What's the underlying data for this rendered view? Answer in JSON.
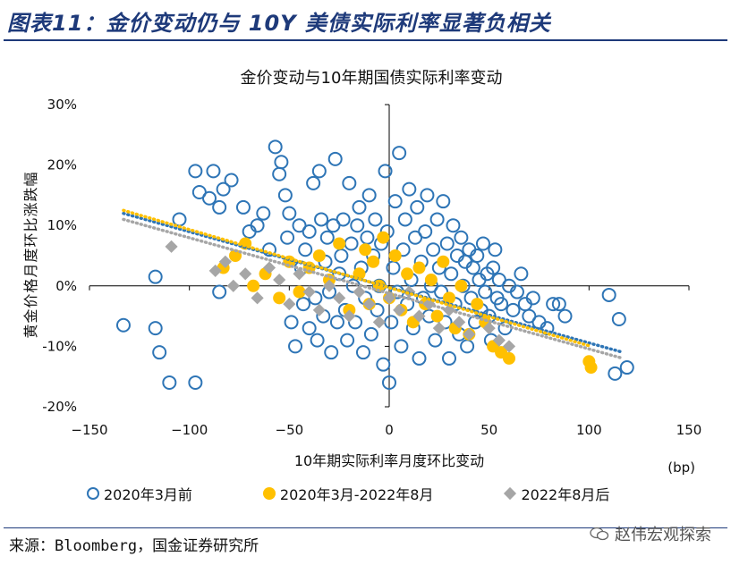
{
  "figure_title": "图表11：金价变动仍与 10Y 美债实际利率显著负相关",
  "source": "来源：Bloomberg，国金证券研究所",
  "watermark": "赵伟宏观探索",
  "colors": {
    "series1": "#2e75b6",
    "series2": "#ffc000",
    "series3": "#a6a6a6",
    "title": "#1e3a7a"
  },
  "chart_data": {
    "type": "scatter",
    "title": "金价变动与10年期国债实际利率变动",
    "xlabel": "10年期实际利率月度环比变动",
    "xunit": "(bp)",
    "ylabel": "黄金价格月度环比涨跌幅",
    "xlim": [
      -150,
      150
    ],
    "ylim": [
      -20,
      30
    ],
    "xticks": [
      -150,
      -100,
      -50,
      0,
      50,
      100,
      150
    ],
    "xtick_labels": [
      "−150",
      "−100",
      "−50",
      "0",
      "50",
      "100",
      "150"
    ],
    "yticks": [
      -20,
      -10,
      0,
      10,
      20,
      30
    ],
    "ytick_labels": [
      "-20%",
      "-10%",
      "0%",
      "10%",
      "20%",
      "30%"
    ],
    "legend_position": "bottom",
    "series": [
      {
        "name": "2020年3月前",
        "marker": "hollow-circle",
        "color": "#2e75b6",
        "points": [
          [
            -133,
            -6.5
          ],
          [
            -117,
            1.5
          ],
          [
            -117,
            -7
          ],
          [
            -115,
            -11
          ],
          [
            -110,
            -16
          ],
          [
            -105,
            11
          ],
          [
            -97,
            -16
          ],
          [
            -97,
            19
          ],
          [
            -95,
            15.5
          ],
          [
            -90,
            14.5
          ],
          [
            -88,
            19
          ],
          [
            -85,
            13
          ],
          [
            -85,
            -1
          ],
          [
            -83,
            16
          ],
          [
            -79,
            17.5
          ],
          [
            -73,
            13
          ],
          [
            -70,
            9
          ],
          [
            -66,
            10
          ],
          [
            -63,
            12
          ],
          [
            -60,
            6
          ],
          [
            -57,
            23
          ],
          [
            -55,
            18.5
          ],
          [
            -54,
            20.5
          ],
          [
            -52,
            15
          ],
          [
            -51,
            8
          ],
          [
            -50,
            12
          ],
          [
            -49,
            -6
          ],
          [
            -47,
            -10
          ],
          [
            -45,
            10
          ],
          [
            -44,
            3
          ],
          [
            -43,
            -3
          ],
          [
            -42,
            6
          ],
          [
            -40,
            9
          ],
          [
            -40,
            -7
          ],
          [
            -38,
            17
          ],
          [
            -37,
            -2
          ],
          [
            -36,
            -9
          ],
          [
            -35,
            19
          ],
          [
            -34,
            11
          ],
          [
            -33,
            -5
          ],
          [
            -32,
            4
          ],
          [
            -31,
            8
          ],
          [
            -30,
            -1
          ],
          [
            -29,
            -11
          ],
          [
            -28,
            10
          ],
          [
            -27,
            21
          ],
          [
            -26,
            -6
          ],
          [
            -25,
            2
          ],
          [
            -24,
            5
          ],
          [
            -23,
            11
          ],
          [
            -22,
            -4
          ],
          [
            -21,
            -9
          ],
          [
            -20,
            17
          ],
          [
            -19,
            7
          ],
          [
            -18,
            0
          ],
          [
            -17,
            -6
          ],
          [
            -16,
            10
          ],
          [
            -15,
            13
          ],
          [
            -14,
            3
          ],
          [
            -13,
            -11
          ],
          [
            -12,
            -2
          ],
          [
            -11,
            8
          ],
          [
            -10,
            15
          ],
          [
            -9,
            -8
          ],
          [
            -8,
            5
          ],
          [
            -7,
            11
          ],
          [
            -6,
            -4
          ],
          [
            -5,
            0
          ],
          [
            -4,
            7
          ],
          [
            -3,
            -13
          ],
          [
            -2,
            19
          ],
          [
            -1,
            9
          ],
          [
            0,
            -16
          ],
          [
            1,
            -6
          ],
          [
            2,
            3
          ],
          [
            3,
            14
          ],
          [
            4,
            -1
          ],
          [
            5,
            22
          ],
          [
            6,
            -10
          ],
          [
            7,
            6
          ],
          [
            8,
            11
          ],
          [
            9,
            -3
          ],
          [
            10,
            16
          ],
          [
            11,
            1
          ],
          [
            12,
            -7
          ],
          [
            13,
            8
          ],
          [
            14,
            13
          ],
          [
            15,
            -12
          ],
          [
            16,
            4
          ],
          [
            17,
            -2
          ],
          [
            18,
            9
          ],
          [
            19,
            15
          ],
          [
            20,
            -5
          ],
          [
            21,
            0
          ],
          [
            22,
            6
          ],
          [
            23,
            -9
          ],
          [
            24,
            11
          ],
          [
            25,
            3
          ],
          [
            26,
            -1
          ],
          [
            27,
            14
          ],
          [
            28,
            -6
          ],
          [
            29,
            7
          ],
          [
            30,
            -12
          ],
          [
            31,
            2
          ],
          [
            32,
            10
          ],
          [
            33,
            -3
          ],
          [
            34,
            5
          ],
          [
            35,
            -8
          ],
          [
            36,
            8
          ],
          [
            37,
            0
          ],
          [
            38,
            4
          ],
          [
            39,
            -10
          ],
          [
            40,
            6
          ],
          [
            41,
            -2
          ],
          [
            42,
            3
          ],
          [
            43,
            -6
          ],
          [
            44,
            5
          ],
          [
            45,
            1
          ],
          [
            46,
            -4
          ],
          [
            47,
            7
          ],
          [
            48,
            -1
          ],
          [
            49,
            2
          ],
          [
            50,
            -5
          ],
          [
            51,
            -9
          ],
          [
            52,
            3
          ],
          [
            53,
            6
          ],
          [
            54,
            -2
          ],
          [
            55,
            1
          ],
          [
            56,
            -3
          ],
          [
            58,
            -7
          ],
          [
            60,
            0
          ],
          [
            62,
            -4
          ],
          [
            64,
            -1
          ],
          [
            66,
            2
          ],
          [
            68,
            -3
          ],
          [
            70,
            -5
          ],
          [
            72,
            -2
          ],
          [
            75,
            -6
          ],
          [
            79,
            -7
          ],
          [
            82,
            -3
          ],
          [
            85,
            -3
          ],
          [
            88,
            -5
          ],
          [
            110,
            -1.5
          ],
          [
            113,
            -14.5
          ],
          [
            115,
            -5.5
          ],
          [
            119,
            -13.5
          ]
        ]
      },
      {
        "name": "2020年3月-2022年8月",
        "marker": "filled-circle",
        "color": "#ffc000",
        "points": [
          [
            -83,
            3
          ],
          [
            -77,
            5
          ],
          [
            -72,
            7
          ],
          [
            -68,
            0
          ],
          [
            -62,
            2
          ],
          [
            -55,
            -2
          ],
          [
            -50,
            4
          ],
          [
            -45,
            -1
          ],
          [
            -40,
            3
          ],
          [
            -35,
            5
          ],
          [
            -30,
            1
          ],
          [
            -25,
            7
          ],
          [
            -20,
            -4
          ],
          [
            -15,
            2
          ],
          [
            -12,
            6
          ],
          [
            -10,
            -3
          ],
          [
            -8,
            4
          ],
          [
            -5,
            0
          ],
          [
            -3,
            8
          ],
          [
            0,
            -2
          ],
          [
            3,
            5
          ],
          [
            6,
            -4
          ],
          [
            9,
            2
          ],
          [
            12,
            -6
          ],
          [
            15,
            3
          ],
          [
            18,
            -3
          ],
          [
            21,
            1
          ],
          [
            24,
            -5
          ],
          [
            27,
            4
          ],
          [
            30,
            -2
          ],
          [
            33,
            -7
          ],
          [
            36,
            0
          ],
          [
            40,
            -8
          ],
          [
            44,
            -3
          ],
          [
            48,
            -6
          ],
          [
            52,
            -10
          ],
          [
            56,
            -11
          ],
          [
            60,
            -12
          ],
          [
            100,
            -12.5
          ],
          [
            101,
            -13.5
          ]
        ]
      },
      {
        "name": "2022年8月后",
        "marker": "filled-diamond",
        "color": "#a6a6a6",
        "points": [
          [
            -109,
            6.5
          ],
          [
            -87,
            2.5
          ],
          [
            -82,
            4
          ],
          [
            -78,
            0
          ],
          [
            -72,
            2
          ],
          [
            -66,
            -2
          ],
          [
            -60,
            3
          ],
          [
            -55,
            1
          ],
          [
            -50,
            -3
          ],
          [
            -45,
            2
          ],
          [
            -40,
            -1
          ],
          [
            -35,
            -4
          ],
          [
            -30,
            0
          ],
          [
            -25,
            -2
          ],
          [
            -20,
            -5
          ],
          [
            -15,
            -1
          ],
          [
            -10,
            -3
          ],
          [
            -5,
            -6
          ],
          [
            0,
            -2
          ],
          [
            5,
            -4
          ],
          [
            10,
            -1
          ],
          [
            15,
            -5
          ],
          [
            20,
            -3
          ],
          [
            25,
            -7
          ],
          [
            30,
            -4
          ],
          [
            35,
            -6
          ],
          [
            40,
            -8
          ],
          [
            50,
            -7
          ],
          [
            55,
            -9
          ],
          [
            60,
            -10
          ]
        ]
      }
    ],
    "trendlines": [
      {
        "series": "2020年3月前",
        "color": "#2e75b6",
        "from": [
          -133,
          12
        ],
        "to": [
          117,
          -11
        ]
      },
      {
        "series": "2020年3月-2022年8月",
        "color": "#ffc000",
        "from": [
          -133,
          12.5
        ],
        "to": [
          101,
          -10
        ]
      },
      {
        "series": "2022年8月后",
        "color": "#a6a6a6",
        "from": [
          -133,
          11
        ],
        "to": [
          117,
          -12
        ]
      }
    ]
  }
}
